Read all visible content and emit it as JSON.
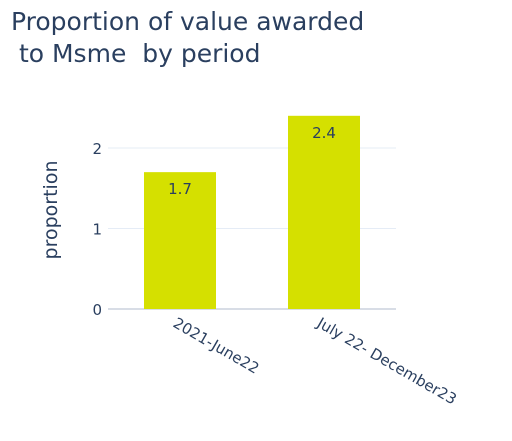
{
  "chart_data": {
    "type": "bar",
    "title_lines": [
      "Proportion of value awarded",
      " to Msme  by period"
    ],
    "xlabel": "",
    "ylabel": "proportion",
    "categories": [
      "2021-June22",
      "July 22- December23"
    ],
    "values": [
      1.7,
      2.4
    ],
    "data_labels": [
      "1.7",
      "2.4"
    ],
    "ylim": [
      0,
      2.4
    ],
    "yticks": [
      0,
      1,
      2
    ],
    "grid": true,
    "legend": "none",
    "colors": {
      "bar": "#d5e000",
      "grid": "#e5ecf6",
      "text": "#2a3f5f"
    }
  }
}
